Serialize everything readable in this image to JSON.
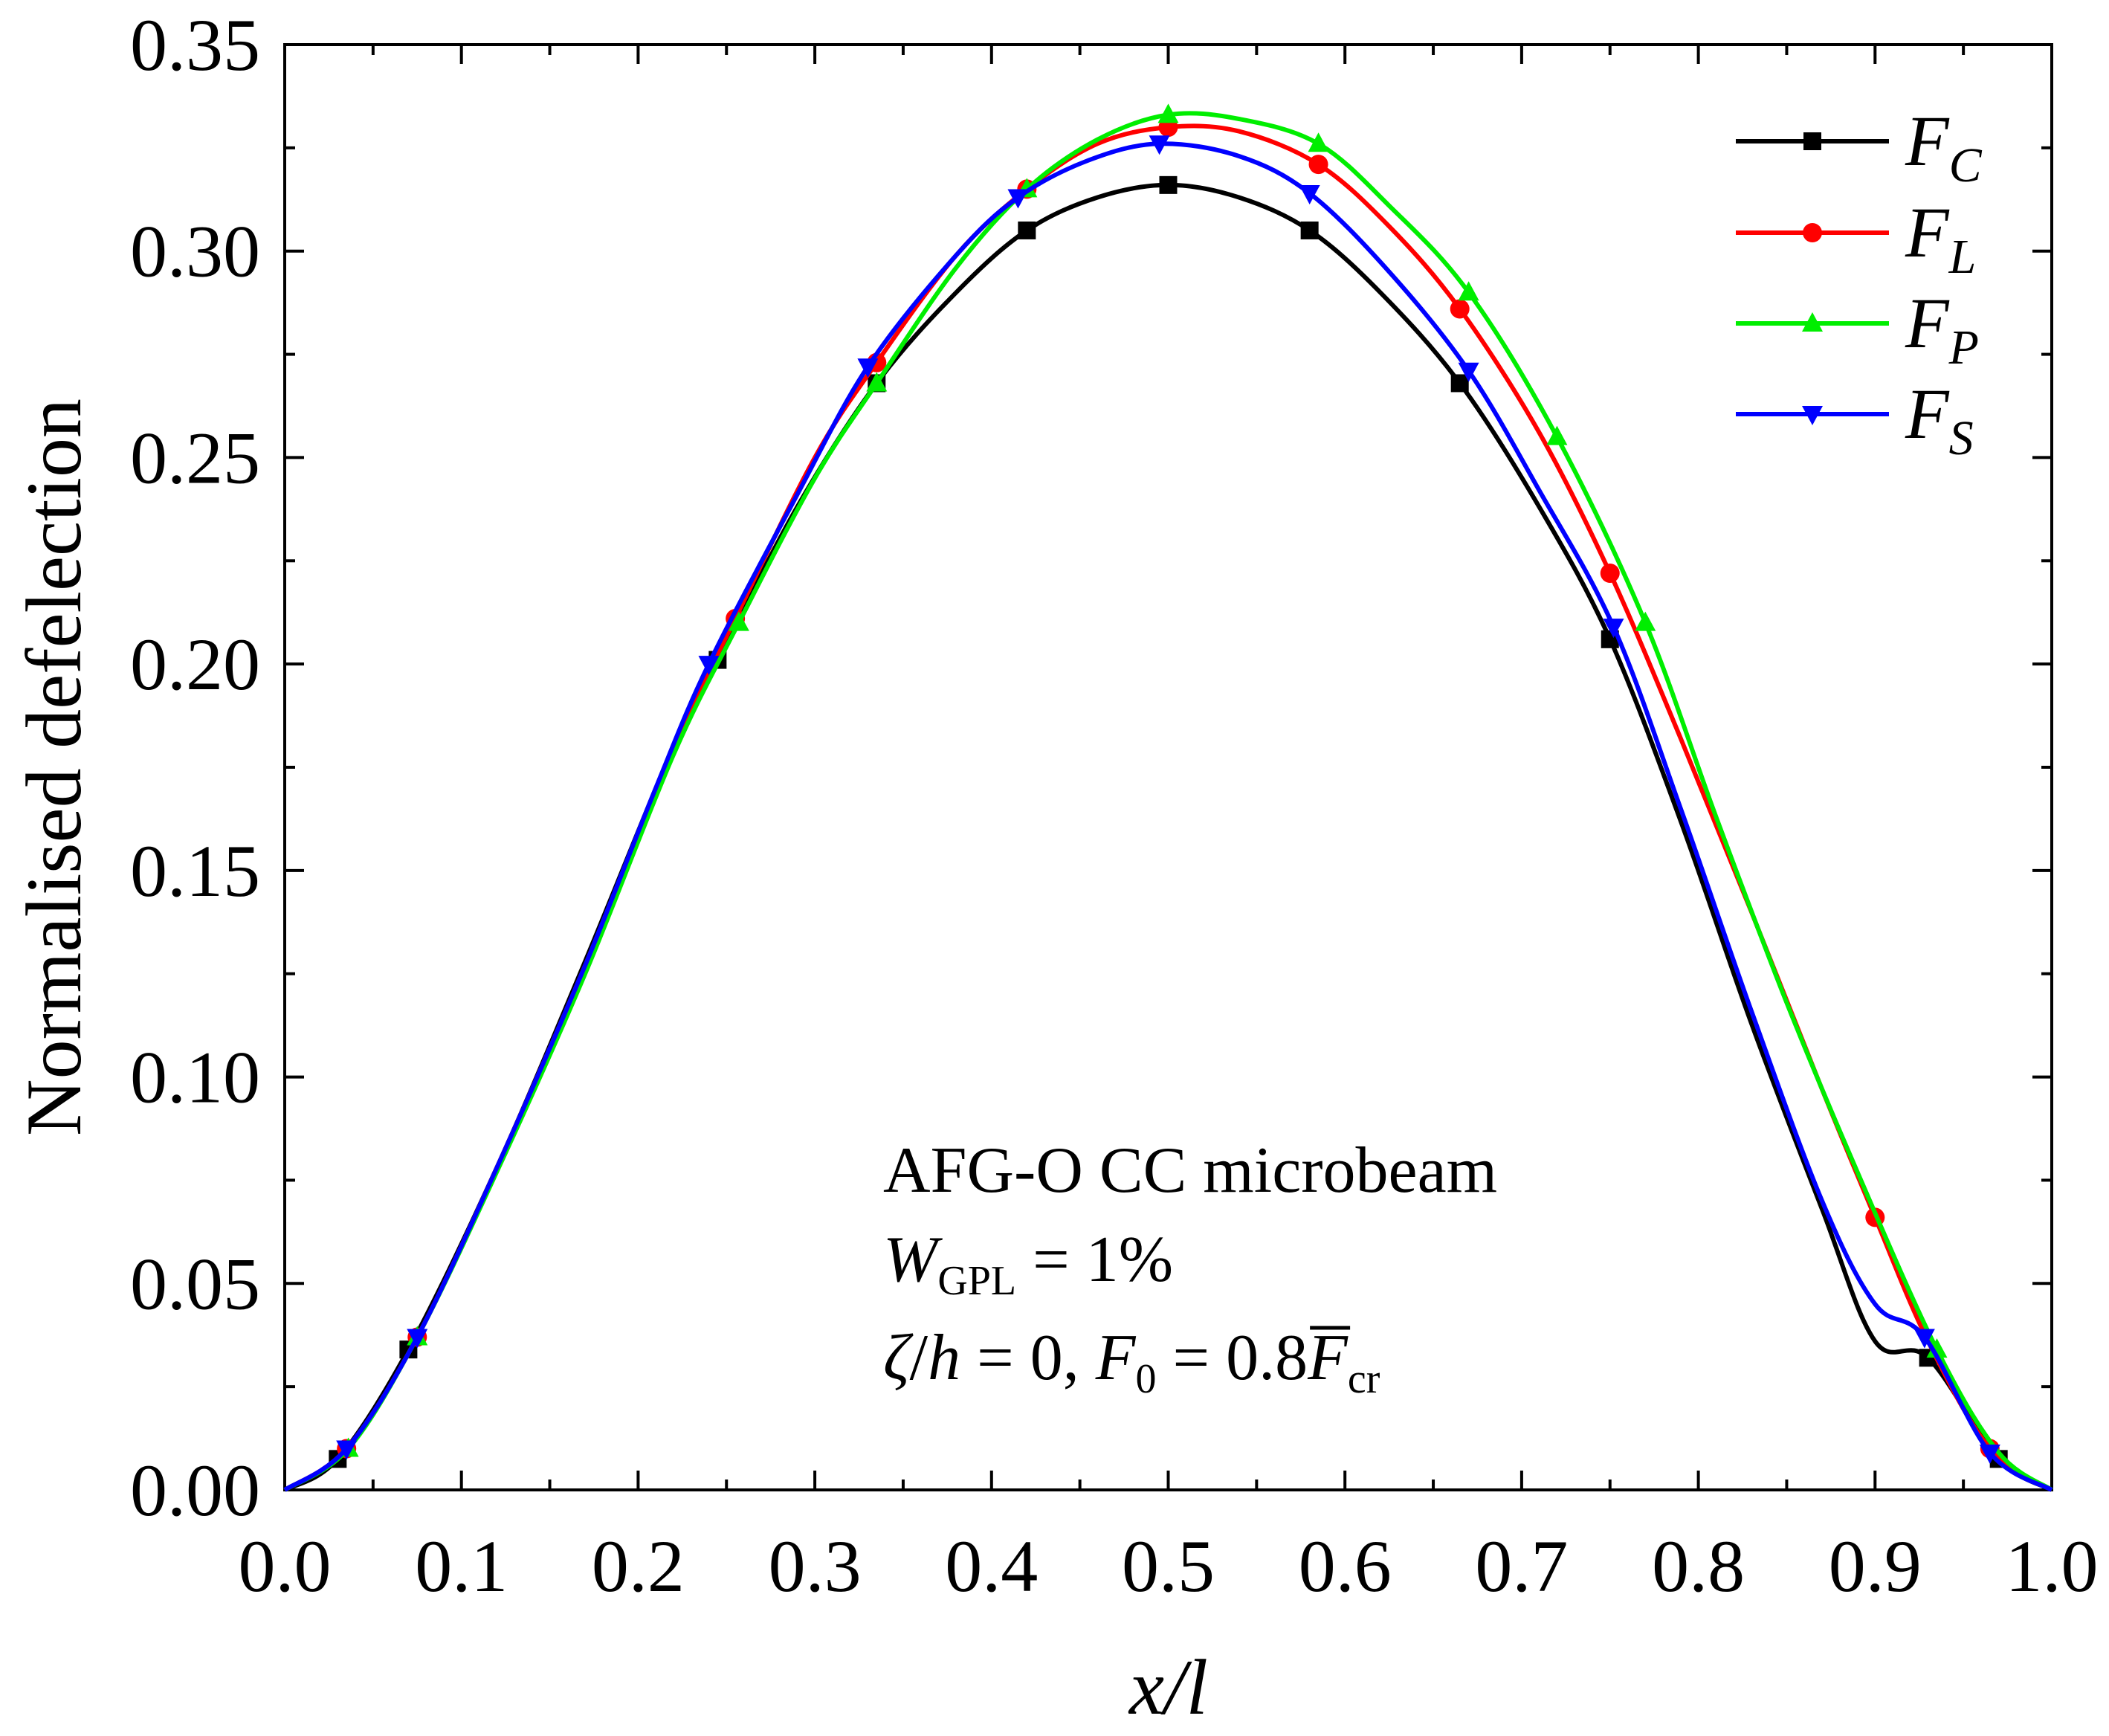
{
  "chart_data": {
    "type": "line",
    "xlabel": "x/l",
    "ylabel": "Normalised defelection",
    "xlim": [
      0.0,
      1.0
    ],
    "ylim": [
      0.0,
      0.35
    ],
    "x_ticks": [
      "0.0",
      "0.1",
      "0.2",
      "0.3",
      "0.4",
      "0.5",
      "0.6",
      "0.7",
      "0.8",
      "0.9",
      "1.0"
    ],
    "y_ticks": [
      "0.00",
      "0.05",
      "0.10",
      "0.15",
      "0.20",
      "0.25",
      "0.30",
      "0.35"
    ],
    "legend_position": "top-right",
    "annotation": {
      "line1": "AFG-O CC microbeam",
      "w_sym": "W",
      "w_sub": "GPL",
      "w_rest": " = 1%",
      "zeta": "ζ",
      "slash": "/",
      "h": "h",
      "eq0": " = 0, ",
      "f_sym": "F",
      "f_sub": "0",
      "eq_val": " = 0.8",
      "fbar": "F",
      "cr": "cr"
    },
    "series": [
      {
        "name": "F_C",
        "label_main": "F",
        "label_sub": "C",
        "color": "#000000",
        "marker": "square",
        "x": [
          0,
          0.03,
          0.07,
          0.12,
          0.17,
          0.22,
          0.245,
          0.29,
          0.335,
          0.38,
          0.42,
          0.46,
          0.5,
          0.54,
          0.58,
          0.62,
          0.665,
          0.71,
          0.75,
          0.79,
          0.83,
          0.87,
          0.9,
          0.93,
          0.97,
          1.0
        ],
        "y": [
          0,
          0.0075,
          0.034,
          0.078,
          0.128,
          0.18,
          0.201,
          0.238,
          0.268,
          0.29,
          0.305,
          0.313,
          0.316,
          0.313,
          0.305,
          0.29,
          0.268,
          0.238,
          0.206,
          0.162,
          0.113,
          0.068,
          0.036,
          0.032,
          0.0075,
          0
        ],
        "markers_x": [
          0.03,
          0.07,
          0.245,
          0.335,
          0.42,
          0.5,
          0.58,
          0.665,
          0.75,
          0.93,
          0.97
        ]
      },
      {
        "name": "F_L",
        "label_main": "F",
        "label_sub": "L",
        "color": "#ff0000",
        "marker": "circle",
        "x": [
          0,
          0.035,
          0.075,
          0.12,
          0.17,
          0.22,
          0.255,
          0.3,
          0.335,
          0.38,
          0.42,
          0.46,
          0.5,
          0.54,
          0.585,
          0.625,
          0.665,
          0.71,
          0.75,
          0.79,
          0.83,
          0.87,
          0.9,
          0.93,
          0.965,
          1.0
        ],
        "y": [
          0,
          0.01,
          0.037,
          0.078,
          0.127,
          0.18,
          0.211,
          0.25,
          0.273,
          0.299,
          0.315,
          0.326,
          0.33,
          0.329,
          0.321,
          0.306,
          0.286,
          0.256,
          0.222,
          0.182,
          0.14,
          0.097,
          0.066,
          0.036,
          0.01,
          0
        ],
        "markers_x": [
          0.035,
          0.075,
          0.255,
          0.335,
          0.42,
          0.5,
          0.585,
          0.665,
          0.75,
          0.9,
          0.965
        ]
      },
      {
        "name": "F_P",
        "label_main": "F",
        "label_sub": "P",
        "color": "#00ee00",
        "marker": "triangle-up",
        "x": [
          0,
          0.036,
          0.075,
          0.12,
          0.17,
          0.22,
          0.257,
          0.3,
          0.335,
          0.38,
          0.42,
          0.46,
          0.5,
          0.54,
          0.585,
          0.625,
          0.67,
          0.72,
          0.77,
          0.81,
          0.85,
          0.89,
          0.935,
          0.97,
          1.0
        ],
        "y": [
          0,
          0.01,
          0.037,
          0.077,
          0.125,
          0.178,
          0.21,
          0.245,
          0.268,
          0.296,
          0.315,
          0.327,
          0.333,
          0.332,
          0.326,
          0.311,
          0.29,
          0.255,
          0.21,
          0.163,
          0.118,
          0.077,
          0.034,
          0.009,
          0
        ],
        "markers_x": [
          0.036,
          0.075,
          0.257,
          0.335,
          0.42,
          0.5,
          0.585,
          0.67,
          0.72,
          0.77,
          0.935
        ]
      },
      {
        "name": "F_S",
        "label_main": "F",
        "label_sub": "S",
        "color": "#0000ff",
        "marker": "triangle-down",
        "x": [
          0,
          0.035,
          0.075,
          0.12,
          0.17,
          0.21,
          0.24,
          0.29,
          0.33,
          0.38,
          0.415,
          0.455,
          0.495,
          0.54,
          0.58,
          0.625,
          0.67,
          0.71,
          0.752,
          0.79,
          0.83,
          0.87,
          0.9,
          0.928,
          0.965,
          1.0
        ],
        "y": [
          0,
          0.01,
          0.037,
          0.078,
          0.127,
          0.17,
          0.2,
          0.241,
          0.272,
          0.299,
          0.313,
          0.322,
          0.326,
          0.323,
          0.314,
          0.295,
          0.271,
          0.242,
          0.209,
          0.165,
          0.116,
          0.07,
          0.045,
          0.037,
          0.009,
          0
        ],
        "markers_x": [
          0.035,
          0.075,
          0.24,
          0.33,
          0.415,
          0.495,
          0.58,
          0.67,
          0.752,
          0.928,
          0.965
        ]
      }
    ]
  }
}
